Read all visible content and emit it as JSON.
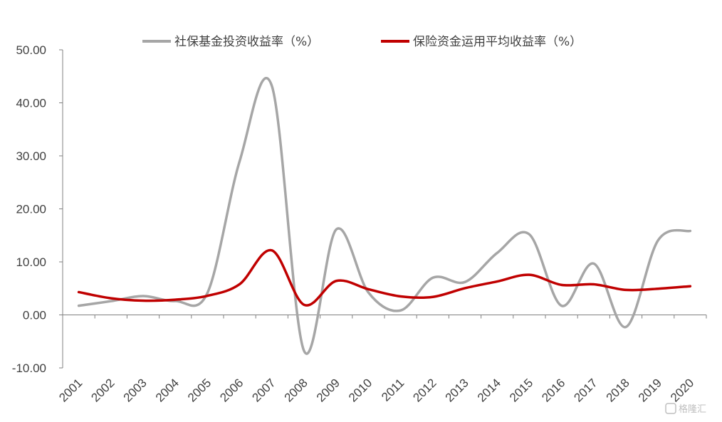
{
  "chart_data": {
    "type": "line",
    "categories": [
      "2001",
      "2002",
      "2003",
      "2004",
      "2005",
      "2006",
      "2007",
      "2008",
      "2009",
      "2010",
      "2011",
      "2012",
      "2013",
      "2014",
      "2015",
      "2016",
      "2017",
      "2018",
      "2019",
      "2020"
    ],
    "series": [
      {
        "name": "社保基金投资收益率（%）",
        "color": "#a6a6a6",
        "values": [
          1.73,
          2.59,
          3.56,
          2.61,
          4.16,
          29.01,
          43.19,
          -6.79,
          16.12,
          4.23,
          0.84,
          7.01,
          6.2,
          11.69,
          15.19,
          1.73,
          9.68,
          -2.28,
          14.06,
          15.84
        ]
      },
      {
        "name": "保险资金运用平均收益率（%）",
        "color": "#c00000",
        "values": [
          4.3,
          3.14,
          2.68,
          2.87,
          3.6,
          5.8,
          12.17,
          1.91,
          6.41,
          4.84,
          3.49,
          3.39,
          5.04,
          6.3,
          7.56,
          5.66,
          5.77,
          4.71,
          4.94,
          5.41
        ]
      }
    ],
    "yticks": [
      "50.00",
      "40.00",
      "30.00",
      "20.00",
      "10.00",
      "0.00",
      "-10.00"
    ],
    "ylim": [
      -10,
      50
    ],
    "grid": false,
    "legend_position": "top"
  },
  "watermark": {
    "text": "格隆汇",
    "icon": "g-logo-icon"
  }
}
